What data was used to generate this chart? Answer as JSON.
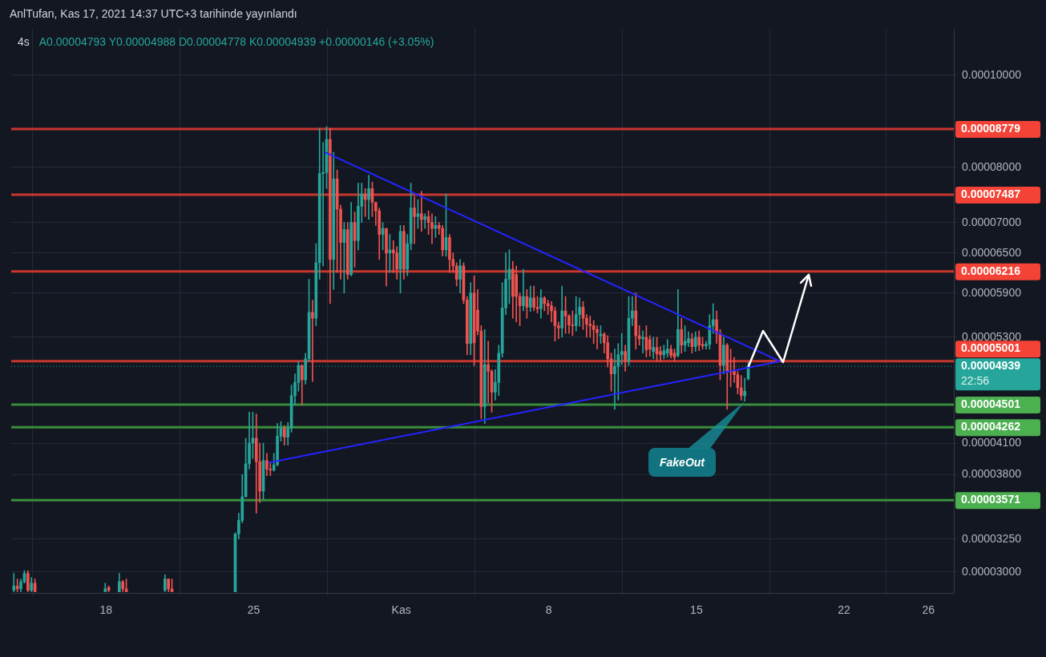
{
  "chart_data": {
    "type": "candlestick",
    "title": "4s",
    "subtitle": "A0.00004793 Y0.00004988 D0.00004778 K0.00004939 +0.00000146 (+3.05%)",
    "colors": [
      "#26a69a",
      "#ef5350",
      "#26a69a",
      "#26a69a",
      "#ef5350",
      "#26a69a",
      "#ef5350",
      "#26a69a",
      "#ef5350",
      "#26a69a",
      "#ef5350",
      "#ef5350",
      "#26a69a",
      "#ef5350",
      "#ef5350",
      "#26a69a",
      "#26a69a",
      "#26a69a",
      "#26a69a",
      "#26a69a",
      "#26a69a",
      "#ef5350",
      "#ef5350",
      "#26a69a",
      "#ef5350",
      "#ef5350",
      "#26a69a",
      "#26a69a",
      "#26a69a",
      "#ef5350",
      "#26a69a",
      "#26a69a",
      "#26a69a",
      "#26a69a",
      "#ef5350",
      "#26a69a",
      "#26a69a",
      "#ef5350",
      "#26a69a",
      "#26a69a",
      "#26a69a",
      "#26a69a",
      "#ef5350",
      "#26a69a",
      "#ef5350",
      "#ef5350",
      "#26a69a",
      "#ef5350",
      "#26a69a",
      "#ef5350",
      "#26a69a",
      "#26a69a",
      "#ef5350",
      "#26a69a",
      "#ef5350",
      "#ef5350",
      "#ef5350",
      "#26a69a",
      "#ef5350",
      "#26a69a",
      "#ef5350",
      "#ef5350",
      "#26a69a",
      "#ef5350",
      "#26a69a",
      "#26a69a",
      "#ef5350",
      "#26a69a",
      "#ef5350",
      "#26a69a",
      "#ef5350",
      "#ef5350",
      "#26a69a",
      "#ef5350",
      "#ef5350",
      "#26a69a",
      "#ef5350",
      "#ef5350",
      "#ef5350",
      "#26a69a",
      "#ef5350",
      "#ef5350",
      "#26a69a",
      "#ef5350",
      "#ef5350",
      "#ef5350",
      "#26a69a",
      "#ef5350",
      "#ef5350",
      "#26a69a",
      "#26a69a",
      "#26a69a",
      "#26a69a",
      "#26a69a",
      "#ef5350",
      "#ef5350",
      "#ef5350",
      "#26a69a",
      "#ef5350",
      "#26a69a",
      "#ef5350",
      "#ef5350",
      "#26a69a",
      "#ef5350",
      "#ef5350",
      "#ef5350",
      "#ef5350",
      "#ef5350",
      "#26a69a",
      "#ef5350",
      "#ef5350",
      "#ef5350",
      "#26a69a",
      "#26a69a",
      "#ef5350",
      "#ef5350",
      "#ef5350",
      "#ef5350",
      "#ef5350",
      "#26a69a",
      "#ef5350",
      "#ef5350",
      "#ef5350",
      "#26a69a",
      "#26a69a",
      "#26a69a",
      "#ef5350",
      "#26a69a",
      "#26a69a",
      "#ef5350",
      "#ef5350",
      "#26a69a",
      "#ef5350",
      "#ef5350",
      "#26a69a",
      "#ef5350",
      "#ef5350",
      "#26a69a",
      "#26a69a",
      "#ef5350",
      "#ef5350",
      "#26a69a",
      "#ef5350",
      "#26a69a",
      "#26a69a",
      "#ef5350",
      "#26a69a",
      "#ef5350",
      "#ef5350",
      "#26a69a",
      "#26a69a",
      "#26a69a",
      "#ef5350",
      "#ef5350",
      "#26a69a",
      "#ef5350",
      "#ef5350",
      "#ef5350",
      "#ef5350",
      "#ef5350",
      "#26a69a",
      "#26a69a"
    ],
    "x": [
      "2021-10-13T15:00",
      "2021-10-13T19:00",
      "2021-10-13T23:00",
      "2021-10-14T03:00",
      "2021-10-14T07:00",
      "2021-10-14T11:00",
      "2021-10-14T15:00",
      "2021-10-17T23:00",
      "2021-10-18T03:00",
      "2021-10-18T15:00",
      "2021-10-18T19:00",
      "2021-10-18T23:00",
      "2021-10-20T19:00",
      "2021-10-20T23:00",
      "2021-10-21T03:00",
      "2021-10-24T03:00",
      "2021-10-24T07:00",
      "2021-10-24T11:00",
      "2021-10-24T15:00",
      "2021-10-24T19:00",
      "2021-10-24T23:00",
      "2021-10-25T03:00",
      "2021-10-25T07:00",
      "2021-10-25T11:00",
      "2021-10-25T15:00",
      "2021-10-25T19:00",
      "2021-10-25T23:00",
      "2021-10-26T03:00",
      "2021-10-26T07:00",
      "2021-10-26T11:00",
      "2021-10-26T15:00",
      "2021-10-26T19:00",
      "2021-10-26T23:00",
      "2021-10-27T03:00",
      "2021-10-27T07:00",
      "2021-10-27T11:00",
      "2021-10-27T15:00",
      "2021-10-27T19:00",
      "2021-10-27T23:00",
      "2021-10-28T03:00",
      "2021-10-28T07:00",
      "2021-10-28T11:00",
      "2021-10-28T15:00",
      "2021-10-28T19:00",
      "2021-10-28T23:00",
      "2021-10-29T03:00",
      "2021-10-29T07:00",
      "2021-10-29T11:00",
      "2021-10-29T15:00",
      "2021-10-29T19:00",
      "2021-10-29T23:00",
      "2021-10-30T03:00",
      "2021-10-30T07:00",
      "2021-10-30T11:00",
      "2021-10-30T15:00",
      "2021-10-30T19:00",
      "2021-10-30T23:00",
      "2021-10-31T03:00",
      "2021-10-31T07:00",
      "2021-10-31T11:00",
      "2021-10-31T15:00",
      "2021-10-31T19:00",
      "2021-10-31T23:00",
      "2021-11-01T03:00",
      "2021-11-01T07:00",
      "2021-11-01T11:00",
      "2021-11-01T15:00",
      "2021-11-01T19:00",
      "2021-11-01T23:00",
      "2021-11-02T03:00",
      "2021-11-02T07:00",
      "2021-11-02T11:00",
      "2021-11-02T15:00",
      "2021-11-02T19:00",
      "2021-11-02T23:00",
      "2021-11-03T03:00",
      "2021-11-03T07:00",
      "2021-11-03T11:00",
      "2021-11-03T15:00",
      "2021-11-03T19:00",
      "2021-11-03T23:00",
      "2021-11-04T03:00",
      "2021-11-04T07:00",
      "2021-11-04T11:00",
      "2021-11-04T15:00",
      "2021-11-04T19:00",
      "2021-11-04T23:00",
      "2021-11-05T03:00",
      "2021-11-05T07:00",
      "2021-11-05T11:00",
      "2021-11-05T15:00",
      "2021-11-05T19:00",
      "2021-11-05T23:00",
      "2021-11-06T03:00",
      "2021-11-06T07:00",
      "2021-11-06T11:00",
      "2021-11-06T15:00",
      "2021-11-06T19:00",
      "2021-11-06T23:00",
      "2021-11-07T03:00",
      "2021-11-07T07:00",
      "2021-11-07T11:00",
      "2021-11-07T15:00",
      "2021-11-07T19:00",
      "2021-11-07T23:00",
      "2021-11-08T03:00",
      "2021-11-08T07:00",
      "2021-11-08T11:00",
      "2021-11-08T15:00",
      "2021-11-08T19:00",
      "2021-11-08T23:00",
      "2021-11-09T03:00",
      "2021-11-09T07:00",
      "2021-11-09T11:00",
      "2021-11-09T15:00",
      "2021-11-09T19:00",
      "2021-11-09T23:00",
      "2021-11-10T03:00",
      "2021-11-10T07:00",
      "2021-11-10T11:00",
      "2021-11-10T15:00",
      "2021-11-10T19:00",
      "2021-11-10T23:00",
      "2021-11-11T03:00",
      "2021-11-11T07:00",
      "2021-11-11T11:00",
      "2021-11-11T15:00",
      "2021-11-11T19:00",
      "2021-11-11T23:00",
      "2021-11-12T03:00",
      "2021-11-12T07:00",
      "2021-11-12T11:00",
      "2021-11-12T15:00",
      "2021-11-12T19:00",
      "2021-11-12T23:00",
      "2021-11-13T03:00",
      "2021-11-13T07:00",
      "2021-11-13T11:00",
      "2021-11-13T15:00",
      "2021-11-13T19:00",
      "2021-11-13T23:00",
      "2021-11-14T03:00",
      "2021-11-14T07:00",
      "2021-11-14T11:00",
      "2021-11-14T15:00",
      "2021-11-14T19:00",
      "2021-11-14T23:00",
      "2021-11-15T03:00",
      "2021-11-15T07:00",
      "2021-11-15T11:00",
      "2021-11-15T15:00",
      "2021-11-15T19:00",
      "2021-11-15T23:00",
      "2021-11-16T03:00",
      "2021-11-16T07:00",
      "2021-11-16T11:00",
      "2021-11-16T15:00",
      "2021-11-16T19:00",
      "2021-11-16T23:00",
      "2021-11-17T03:00",
      "2021-11-17T07:00",
      "2021-11-17T11:00"
    ],
    "ohlc": [
      [
        2.87e-05,
        2.99e-05,
        2.86e-05,
        2.9e-05
      ],
      [
        2.9e-05,
        2.95e-05,
        2.86e-05,
        2.88e-05
      ],
      [
        2.88e-05,
        2.95e-05,
        2.86e-05,
        2.93e-05
      ],
      [
        2.93e-05,
        3.01e-05,
        2.92e-05,
        2.99e-05
      ],
      [
        2.99e-05,
        3.01e-05,
        2.86e-05,
        2.87e-05
      ],
      [
        2.87e-05,
        2.96e-05,
        2.86e-05,
        2.92e-05
      ],
      [
        2.92e-05,
        2.95e-05,
        2.86e-05,
        2.86e-05
      ],
      [
        2.86e-05,
        2.92e-05,
        2.86e-05,
        2.88e-05
      ],
      [
        2.89e-05,
        2.9e-05,
        2.86e-05,
        2.87e-05
      ],
      [
        2.86e-05,
        2.99e-05,
        2.86e-05,
        2.93e-05
      ],
      [
        2.93e-05,
        2.94e-05,
        2.86e-05,
        2.88e-05
      ],
      [
        2.88e-05,
        2.95e-05,
        2.86e-05,
        2.86e-05
      ],
      [
        2.87e-05,
        2.98e-05,
        2.86e-05,
        2.95e-05
      ],
      [
        2.95e-05,
        2.95e-05,
        2.86e-05,
        2.88e-05
      ],
      [
        2.88e-05,
        2.95e-05,
        2.86e-05,
        2.86e-05
      ],
      [
        2.86e-05,
        3.3e-05,
        2.86e-05,
        3.29e-05
      ],
      [
        3.29e-05,
        3.46e-05,
        3.25e-05,
        3.4e-05
      ],
      [
        3.4e-05,
        3.8e-05,
        3.38e-05,
        3.6e-05
      ],
      [
        3.6e-05,
        4.15e-05,
        3.6e-05,
        3.9e-05
      ],
      [
        3.9e-05,
        4.42e-05,
        3.85e-05,
        4.1e-05
      ],
      [
        4.1e-05,
        4.42e-05,
        3.95e-05,
        4.15e-05
      ],
      [
        4.15e-05,
        4.4e-05,
        3.46e-05,
        3.92e-05
      ],
      [
        3.92e-05,
        4.1e-05,
        3.55e-05,
        3.65e-05
      ],
      [
        3.65e-05,
        4.1e-05,
        3.58e-05,
        3.93e-05
      ],
      [
        3.93e-05,
        4e-05,
        3.79e-05,
        3.85e-05
      ],
      [
        3.85e-05,
        3.92e-05,
        3.79e-05,
        3.84e-05
      ],
      [
        3.84e-05,
        4e-05,
        3.83e-05,
        3.89e-05
      ],
      [
        3.89e-05,
        4.3e-05,
        3.88e-05,
        4.17e-05
      ],
      [
        4.17e-05,
        4.32e-05,
        4.12e-05,
        4.25e-05
      ],
      [
        4.25e-05,
        4.28e-05,
        4.08e-05,
        4.16e-05
      ],
      [
        4.16e-05,
        4.31e-05,
        4.08e-05,
        4.25e-05
      ],
      [
        4.25e-05,
        4.72e-05,
        4.21e-05,
        4.6e-05
      ],
      [
        4.6e-05,
        4.85e-05,
        4.5e-05,
        4.75e-05
      ],
      [
        4.75e-05,
        5e-05,
        4.65e-05,
        4.95e-05
      ],
      [
        4.95e-05,
        4.96e-05,
        4.5e-05,
        4.78e-05
      ],
      [
        4.78e-05,
        5.1e-05,
        4.73e-05,
        5.03e-05
      ],
      [
        5.03e-05,
        6.1e-05,
        5e-05,
        5.63e-05
      ],
      [
        5.63e-05,
        5.8e-05,
        4.76e-05,
        5.55e-05
      ],
      [
        5.55e-05,
        6.65e-05,
        5.45e-05,
        6.35e-05
      ],
      [
        6.35e-05,
        8.8e-05,
        6.1e-05,
        7.88e-05
      ],
      [
        7.88e-05,
        8.5e-05,
        6.3e-05,
        7.9e-05
      ],
      [
        7.9e-05,
        8.83e-05,
        7.6e-05,
        8.56e-05
      ],
      [
        8.56e-05,
        8.8e-05,
        5.75e-05,
        6.4e-05
      ],
      [
        6.4e-05,
        8.3e-05,
        5.95e-05,
        7.78e-05
      ],
      [
        7.78e-05,
        7.95e-05,
        6.2e-05,
        7.23e-05
      ],
      [
        7.23e-05,
        7.3e-05,
        6.1e-05,
        6.67e-05
      ],
      [
        6.67e-05,
        7e-05,
        5.9e-05,
        6.88e-05
      ],
      [
        6.88e-05,
        7e-05,
        6.1e-05,
        6.17e-05
      ],
      [
        6.17e-05,
        7.35e-05,
        6.15e-05,
        7e-05
      ],
      [
        7e-05,
        7.18e-05,
        6.28e-05,
        6.7e-05
      ],
      [
        6.7e-05,
        7.7e-05,
        6.55e-05,
        7.28e-05
      ],
      [
        7.28e-05,
        7.7e-05,
        7e-05,
        7.5e-05
      ],
      [
        7.5e-05,
        7.6e-05,
        7.1e-05,
        7.4e-05
      ],
      [
        7.4e-05,
        7.85e-05,
        7.05e-05,
        7.6e-05
      ],
      [
        7.6e-05,
        7.72e-05,
        7.1e-05,
        7.35e-05
      ],
      [
        7.35e-05,
        7.35e-05,
        6.95e-05,
        7.2e-05
      ],
      [
        7.2e-05,
        7.25e-05,
        6.4e-05,
        6.8e-05
      ],
      [
        6.8e-05,
        7e-05,
        6.55e-05,
        6.9e-05
      ],
      [
        6.9e-05,
        6.9e-05,
        6e-05,
        6.5e-05
      ],
      [
        6.5e-05,
        6.8e-05,
        6.2e-05,
        6.55e-05
      ],
      [
        6.55e-05,
        6.7e-05,
        6.2e-05,
        6.5e-05
      ],
      [
        6.5e-05,
        6.6e-05,
        6.1e-05,
        6.25e-05
      ],
      [
        6.25e-05,
        6.95e-05,
        5.9e-05,
        6.85e-05
      ],
      [
        6.85e-05,
        6.95e-05,
        6.1e-05,
        6.25e-05
      ],
      [
        6.25e-05,
        6.8e-05,
        6.15e-05,
        6.65e-05
      ],
      [
        6.65e-05,
        7.7e-05,
        6.55e-05,
        7.25e-05
      ],
      [
        7.25e-05,
        7.45e-05,
        6.65e-05,
        7.1e-05
      ],
      [
        7.1e-05,
        7.4e-05,
        6.9e-05,
        7.15e-05
      ],
      [
        7.15e-05,
        7.55e-05,
        6.85e-05,
        7.05e-05
      ],
      [
        7.05e-05,
        7.15e-05,
        6.9e-05,
        7.1e-05
      ],
      [
        7.1e-05,
        7.2e-05,
        6.8e-05,
        7e-05
      ],
      [
        7e-05,
        7.15e-05,
        6.65e-05,
        6.9e-05
      ],
      [
        6.9e-05,
        7.1e-05,
        6.75e-05,
        6.95e-05
      ],
      [
        6.95e-05,
        7e-05,
        6.8e-05,
        6.9e-05
      ],
      [
        6.9e-05,
        6.95e-05,
        6.45e-05,
        6.55e-05
      ],
      [
        6.55e-05,
        7.5e-05,
        6.45e-05,
        6.75e-05
      ],
      [
        6.75e-05,
        6.8e-05,
        6.2e-05,
        6.4e-05
      ],
      [
        6.4e-05,
        6.5e-05,
        6.2e-05,
        6.3e-05
      ],
      [
        6.3e-05,
        6.35e-05,
        6e-05,
        6.1e-05
      ],
      [
        6.1e-05,
        6.4e-05,
        5.9e-05,
        6.3e-05
      ],
      [
        6.3e-05,
        6.35e-05,
        5.75e-05,
        5.8e-05
      ],
      [
        5.8e-05,
        5.85e-05,
        5.08e-05,
        5.22e-05
      ],
      [
        5.22e-05,
        6.05e-05,
        5.08e-05,
        5.9e-05
      ],
      [
        5.9e-05,
        6.15e-05,
        4.95e-05,
        5.23e-05
      ],
      [
        5.66e-05,
        5.95e-05,
        5.33e-05,
        5.38e-05
      ],
      [
        5.38e-05,
        5.45e-05,
        4.35e-05,
        4.48e-05
      ],
      [
        4.48e-05,
        5.4e-05,
        4.3e-05,
        4.96e-05
      ],
      [
        4.96e-05,
        5.25e-05,
        4.52e-05,
        4.88e-05
      ],
      [
        4.88e-05,
        4.9e-05,
        4.42e-05,
        4.64e-05
      ],
      [
        4.64e-05,
        4.9e-05,
        4.55e-05,
        4.75e-05
      ],
      [
        4.75e-05,
        5.2e-05,
        4.6e-05,
        5.1e-05
      ],
      [
        5.1e-05,
        6.05e-05,
        5.05e-05,
        5.69e-05
      ],
      [
        5.69e-05,
        6.5e-05,
        5.6e-05,
        6.1e-05
      ],
      [
        6.1e-05,
        6.55e-05,
        5.75e-05,
        6.25e-05
      ],
      [
        6.25e-05,
        6.37e-05,
        5.55e-05,
        5.85e-05
      ],
      [
        6.17e-05,
        6.3e-05,
        5.5e-05,
        5.85e-05
      ],
      [
        5.85e-05,
        5.9e-05,
        5.45e-05,
        5.72e-05
      ],
      [
        5.72e-05,
        6.25e-05,
        5.65e-05,
        5.85e-05
      ],
      [
        5.85e-05,
        5.95e-05,
        5.55e-05,
        5.7e-05
      ],
      [
        5.7e-05,
        6e-05,
        5.64e-05,
        5.83e-05
      ],
      [
        5.83e-05,
        6e-05,
        5.65e-05,
        5.7e-05
      ],
      [
        5.7e-05,
        5.85e-05,
        5.62e-05,
        5.68e-05
      ],
      [
        5.68e-05,
        5.95e-05,
        5.55e-05,
        5.83e-05
      ],
      [
        5.83e-05,
        5.85e-05,
        5.65e-05,
        5.75e-05
      ],
      [
        5.75e-05,
        5.8e-05,
        5.6e-05,
        5.72e-05
      ],
      [
        5.72e-05,
        5.78e-05,
        5.5e-05,
        5.65e-05
      ],
      [
        5.65e-05,
        5.7e-05,
        5.25e-05,
        5.45e-05
      ],
      [
        5.45e-05,
        5.5e-05,
        5.28e-05,
        5.42e-05
      ],
      [
        5.42e-05,
        6e-05,
        5.3e-05,
        5.65e-05
      ],
      [
        5.65e-05,
        5.85e-05,
        5.35e-05,
        5.58e-05
      ],
      [
        5.58e-05,
        5.6e-05,
        5.35e-05,
        5.46e-05
      ],
      [
        5.46e-05,
        5.65e-05,
        5.32e-05,
        5.45e-05
      ],
      [
        5.45e-05,
        5.85e-05,
        5.38e-05,
        5.6e-05
      ],
      [
        5.6e-05,
        5.83e-05,
        5.44e-05,
        5.7e-05
      ],
      [
        5.7e-05,
        5.78e-05,
        5.4e-05,
        5.55e-05
      ],
      [
        5.55e-05,
        5.6e-05,
        5.3e-05,
        5.47e-05
      ],
      [
        5.47e-05,
        5.58e-05,
        5.3e-05,
        5.45e-05
      ],
      [
        5.45e-05,
        5.52e-05,
        5.22e-05,
        5.4e-05
      ],
      [
        5.4e-05,
        5.45e-05,
        5.15e-05,
        5.36e-05
      ],
      [
        5.32e-05,
        5.45e-05,
        5.22e-05,
        5.34e-05
      ],
      [
        5.34e-05,
        5.36e-05,
        5.1e-05,
        5.23e-05
      ],
      [
        5.23e-05,
        5.32e-05,
        4.93e-05,
        5.03e-05
      ],
      [
        5.03e-05,
        5.1e-05,
        4.65e-05,
        4.85e-05
      ],
      [
        4.85e-05,
        5.15e-05,
        4.45e-05,
        4.94e-05
      ],
      [
        4.94e-05,
        5.22e-05,
        4.55e-05,
        5.08e-05
      ],
      [
        5.08e-05,
        5.35e-05,
        4.96e-05,
        5.12e-05
      ],
      [
        5.12e-05,
        5.2e-05,
        4.88e-05,
        5e-05
      ],
      [
        5e-05,
        5.85e-05,
        4.95e-05,
        5.55e-05
      ],
      [
        5.55e-05,
        5.85e-05,
        5.45e-05,
        5.65e-05
      ],
      [
        5.65e-05,
        5.9e-05,
        5.15e-05,
        5.32e-05
      ],
      [
        5.32e-05,
        5.45e-05,
        5.2e-05,
        5.28e-05
      ],
      [
        5.28e-05,
        5.38e-05,
        5.1e-05,
        5.3e-05
      ],
      [
        5.3e-05,
        5.45e-05,
        5.05e-05,
        5.14e-05
      ],
      [
        5.27e-05,
        5.32e-05,
        5.06e-05,
        5.15e-05
      ],
      [
        5.12e-05,
        5.3e-05,
        5.03e-05,
        5.17e-05
      ],
      [
        5.17e-05,
        5.3e-05,
        5e-05,
        5.09e-05
      ],
      [
        5.12e-05,
        5.18e-05,
        5e-05,
        5.08e-05
      ],
      [
        5.08e-05,
        5.2e-05,
        5.03e-05,
        5.13e-05
      ],
      [
        5.1e-05,
        5.27e-05,
        5.05e-05,
        5.15e-05
      ],
      [
        5.15e-05,
        5.2e-05,
        5.04e-05,
        5.07e-05
      ],
      [
        5.1e-05,
        5.15e-05,
        5e-05,
        5.05e-05
      ],
      [
        5.07e-05,
        5.95e-05,
        5.05e-05,
        5.4e-05
      ],
      [
        5.4e-05,
        5.55e-05,
        5.1e-05,
        5.2e-05
      ],
      [
        5.2e-05,
        5.45e-05,
        5.12e-05,
        5.25e-05
      ],
      [
        5.23e-05,
        5.37e-05,
        5.18e-05,
        5.28e-05
      ],
      [
        5.28e-05,
        5.35e-05,
        5.1e-05,
        5.18e-05
      ],
      [
        5.18e-05,
        5.37e-05,
        5.12e-05,
        5.3e-05
      ],
      [
        5.3e-05,
        5.38e-05,
        5.13e-05,
        5.2e-05
      ],
      [
        5.21e-05,
        5.3e-05,
        5.15e-05,
        5.19e-05
      ],
      [
        5.19e-05,
        5.25e-05,
        5.15e-05,
        5.21e-05
      ],
      [
        5.21e-05,
        5.6e-05,
        5.15e-05,
        5.45e-05
      ],
      [
        5.45e-05,
        5.75e-05,
        5.35e-05,
        5.53e-05
      ],
      [
        5.53e-05,
        5.65e-05,
        5.22e-05,
        5.35e-05
      ],
      [
        5.35e-05,
        5.4e-05,
        4.78e-05,
        4.95e-05
      ],
      [
        4.95e-05,
        5.3e-05,
        4.85e-05,
        5.2e-05
      ],
      [
        5.2e-05,
        5.22e-05,
        4.45e-05,
        4.88e-05
      ],
      [
        4.89e-05,
        5.15e-05,
        4.7e-05,
        4.87e-05
      ],
      [
        4.88e-05,
        5.05e-05,
        4.75e-05,
        4.84e-05
      ],
      [
        4.84e-05,
        4.88e-05,
        4.62e-05,
        4.69e-05
      ],
      [
        4.69e-05,
        4.83e-05,
        4.55e-05,
        4.6e-05
      ],
      [
        4.6e-05,
        4.8e-05,
        4.54e-05,
        4.65e-05
      ],
      [
        4.793e-05,
        4.988e-05,
        4.778e-05,
        4.939e-05
      ]
    ],
    "series": [
      {
        "type": "line",
        "color": "#2424ff",
        "x": [
          "2021-10-28T09:00",
          "2021-11-18T23:00"
        ],
        "values": [
          8.3e-05,
          5e-05
        ]
      },
      {
        "type": "line",
        "color": "#2424ff",
        "x": [
          "2021-10-25T17:00",
          "2021-11-18T23:00"
        ],
        "values": [
          3.91e-05,
          5e-05
        ]
      }
    ],
    "marker": "none",
    "xlim": [
      "2021-10-13T12:00",
      "2021-11-27T05:00"
    ],
    "xticks": [
      {
        "value": "2021-10-18",
        "label": "18"
      },
      {
        "value": "2021-10-25",
        "label": "25"
      },
      {
        "value": "2021-11-01",
        "label": "Kas"
      },
      {
        "value": "2021-11-08",
        "label": "8"
      },
      {
        "value": "2021-11-15",
        "label": "15"
      },
      {
        "value": "2021-11-22",
        "label": "22"
      },
      {
        "value": "2021-11-26",
        "label": "26"
      }
    ],
    "log": "y",
    "ylim": [
      2.852e-05,
      0.00011192
    ],
    "yticks": [
      {
        "value": 3e-05,
        "label": "0.00003000"
      },
      {
        "value": 3.25e-05,
        "label": "0.00003250"
      },
      {
        "value": 3.8e-05,
        "label": "0.00003800"
      },
      {
        "value": 4.1e-05,
        "label": "0.00004100"
      },
      {
        "value": 5.3e-05,
        "label": "0.00005300"
      },
      {
        "value": 5.9e-05,
        "label": "0.00005900"
      },
      {
        "value": 6.5e-05,
        "label": "0.00006500"
      },
      {
        "value": 7e-05,
        "label": "0.00007000"
      },
      {
        "value": 8e-05,
        "label": "0.00008000"
      },
      {
        "value": 0.0001,
        "label": "0.00010000"
      }
    ],
    "grid": true,
    "legend": false,
    "ref_lines": [
      {
        "axis": "y",
        "value": 8.779e-05,
        "label": "0.00008779",
        "color": "#c8372d"
      },
      {
        "axis": "y",
        "value": 7.487e-05,
        "label": "0.00007487",
        "color": "#c8372d"
      },
      {
        "axis": "y",
        "value": 6.216e-05,
        "label": "0.00006216",
        "color": "#c8372d"
      },
      {
        "axis": "y",
        "value": 5.001e-05,
        "label": "0.00005001",
        "color": "#c8372d"
      },
      {
        "axis": "y",
        "value": 4.501e-05,
        "label": "0.00004501",
        "color": "#388e3c"
      },
      {
        "axis": "y",
        "value": 4.262e-05,
        "label": "0.00004262",
        "color": "#388e3c"
      },
      {
        "axis": "y",
        "value": 3.571e-05,
        "label": "0.00003571",
        "color": "#388e3c"
      },
      {
        "axis": "y",
        "value": 4.939e-05,
        "label": "0.00004939",
        "color": "#26a69a",
        "line_style": "dotted"
      }
    ],
    "annotations": [
      "AnlTufan, Kas 17, 2021 14:37 UTC+3 tarihinde yayınlandı",
      "22:56",
      "FakeOut"
    ]
  }
}
